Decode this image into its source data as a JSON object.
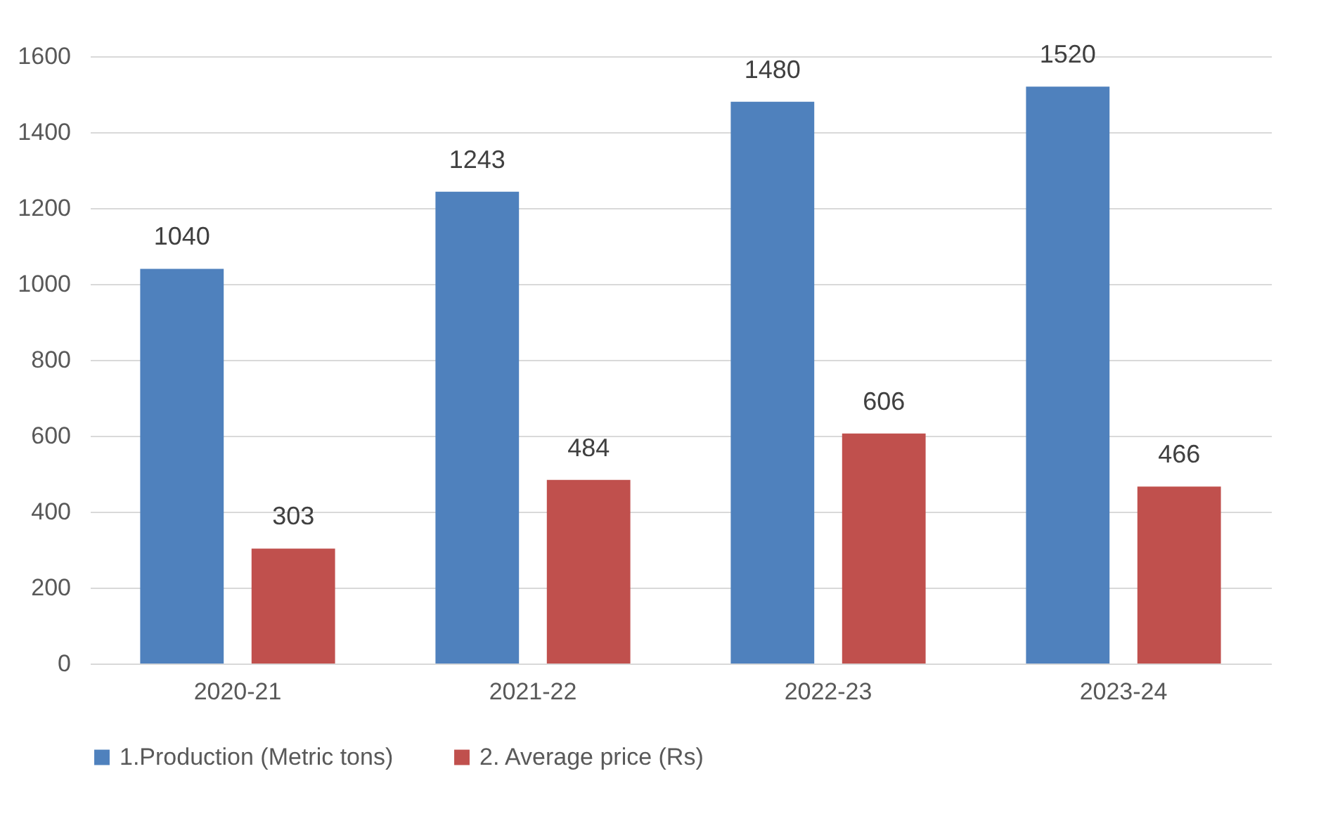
{
  "chart_data": {
    "type": "bar",
    "categories": [
      "2020-21",
      "2021-22",
      "2022-23",
      "2023-24"
    ],
    "series": [
      {
        "name": "1.Production (Metric tons)",
        "color": "#4f81bd",
        "values": [
          1040,
          1243,
          1480,
          1520
        ]
      },
      {
        "name": "2. Average price (Rs)",
        "color": "#c0504d",
        "values": [
          303,
          484,
          606,
          466
        ]
      }
    ],
    "ylim": [
      0,
      1600
    ],
    "yticks": [
      0,
      200,
      400,
      600,
      800,
      1000,
      1200,
      1400,
      1600
    ],
    "grid": "y",
    "legend": "bottom",
    "data_labels": true
  }
}
